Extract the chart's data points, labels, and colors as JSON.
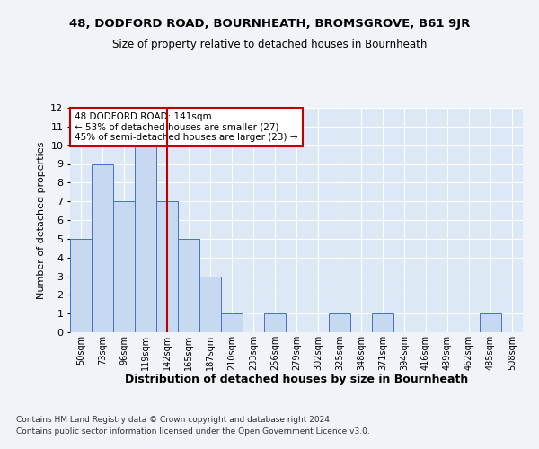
{
  "title_line1": "48, DODFORD ROAD, BOURNHEATH, BROMSGROVE, B61 9JR",
  "title_line2": "Size of property relative to detached houses in Bournheath",
  "xlabel": "Distribution of detached houses by size in Bournheath",
  "ylabel": "Number of detached properties",
  "bin_labels": [
    "50sqm",
    "73sqm",
    "96sqm",
    "119sqm",
    "142sqm",
    "165sqm",
    "187sqm",
    "210sqm",
    "233sqm",
    "256sqm",
    "279sqm",
    "302sqm",
    "325sqm",
    "348sqm",
    "371sqm",
    "394sqm",
    "416sqm",
    "439sqm",
    "462sqm",
    "485sqm",
    "508sqm"
  ],
  "bar_values": [
    5,
    9,
    7,
    10,
    7,
    5,
    3,
    1,
    0,
    1,
    0,
    0,
    1,
    0,
    1,
    0,
    0,
    0,
    0,
    1,
    0
  ],
  "bar_color": "#c6d9f0",
  "bar_edge_color": "#4472c4",
  "reference_line_index": 4,
  "reference_line_color": "#c00000",
  "ylim": [
    0,
    12
  ],
  "yticks": [
    0,
    1,
    2,
    3,
    4,
    5,
    6,
    7,
    8,
    9,
    10,
    11,
    12
  ],
  "annotation_text": "48 DODFORD ROAD: 141sqm\n← 53% of detached houses are smaller (27)\n45% of semi-detached houses are larger (23) →",
  "annotation_box_color": "#ffffff",
  "annotation_box_edge_color": "#c00000",
  "footer_line1": "Contains HM Land Registry data © Crown copyright and database right 2024.",
  "footer_line2": "Contains public sector information licensed under the Open Government Licence v3.0.",
  "bg_color": "#f0f4f8",
  "plot_bg_color": "#dce8f5",
  "grid_color": "#ffffff"
}
